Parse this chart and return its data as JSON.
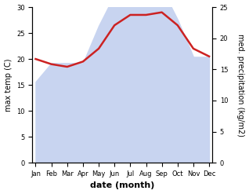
{
  "months": [
    "Jan",
    "Feb",
    "Mar",
    "Apr",
    "May",
    "Jun",
    "Jul",
    "Aug",
    "Sep",
    "Oct",
    "Nov",
    "Dec"
  ],
  "max_temp": [
    20.0,
    19.0,
    18.5,
    19.5,
    22.0,
    26.5,
    28.5,
    28.5,
    29.0,
    26.5,
    22.0,
    20.5
  ],
  "precipitation": [
    13,
    16,
    16,
    16,
    22,
    27,
    28.5,
    28,
    28,
    23,
    17,
    17
  ],
  "temp_color": "#cc2222",
  "precip_fill_color": "#c8d4f0",
  "precip_fill_alpha": 1.0,
  "temp_linewidth": 1.8,
  "left_ylim": [
    0,
    30
  ],
  "right_ylim": [
    0,
    25
  ],
  "left_yticks": [
    0,
    5,
    10,
    15,
    20,
    25,
    30
  ],
  "right_yticks": [
    0,
    5,
    10,
    15,
    20,
    25
  ],
  "ylabel_left": "max temp (C)",
  "ylabel_right": "med. precipitation (kg/m2)",
  "xlabel": "date (month)",
  "xlabel_fontweight": "bold",
  "xlabel_fontsize": 8,
  "ylabel_fontsize": 7,
  "tick_fontsize": 6,
  "bg_color": "#ffffff",
  "figwidth": 3.18,
  "figheight": 2.47,
  "dpi": 100
}
